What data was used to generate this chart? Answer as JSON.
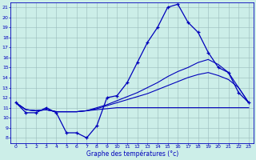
{
  "title": "Graphe des températures (°c)",
  "bg_color": "#cceee8",
  "line_color": "#0000bb",
  "grid_color": "#99bbbb",
  "xlim": [
    -0.5,
    23.5
  ],
  "ylim": [
    7.5,
    21.5
  ],
  "xticks": [
    0,
    1,
    2,
    3,
    4,
    5,
    6,
    7,
    8,
    9,
    10,
    11,
    12,
    13,
    14,
    15,
    16,
    17,
    18,
    19,
    20,
    21,
    22,
    23
  ],
  "yticks": [
    8,
    9,
    10,
    11,
    12,
    13,
    14,
    15,
    16,
    17,
    18,
    19,
    20,
    21
  ],
  "hours": [
    0,
    1,
    2,
    3,
    4,
    5,
    6,
    7,
    8,
    9,
    10,
    11,
    12,
    13,
    14,
    15,
    16,
    17,
    18,
    19,
    20,
    21,
    22,
    23
  ],
  "temp_main": [
    11.5,
    10.5,
    10.5,
    11.0,
    10.5,
    8.5,
    8.5,
    8.0,
    9.2,
    12.0,
    12.2,
    13.5,
    15.5,
    17.5,
    19.0,
    21.0,
    21.3,
    19.5,
    18.5,
    16.5,
    15.0,
    14.5,
    12.5,
    11.5
  ],
  "temp_flat": [
    11.5,
    10.8,
    10.7,
    10.8,
    10.6,
    10.6,
    10.6,
    10.7,
    10.8,
    10.9,
    11.0,
    11.0,
    11.0,
    11.0,
    11.0,
    11.0,
    11.0,
    11.0,
    11.0,
    11.0,
    11.0,
    11.0,
    11.0,
    11.0
  ],
  "temp_mid1": [
    11.5,
    10.8,
    10.7,
    10.8,
    10.6,
    10.6,
    10.6,
    10.7,
    10.9,
    11.2,
    11.5,
    11.8,
    12.1,
    12.4,
    12.8,
    13.2,
    13.6,
    14.0,
    14.3,
    14.5,
    14.2,
    13.8,
    13.0,
    11.5
  ],
  "temp_mid2": [
    11.5,
    10.8,
    10.7,
    10.8,
    10.6,
    10.6,
    10.6,
    10.7,
    11.0,
    11.3,
    11.7,
    12.1,
    12.5,
    13.0,
    13.5,
    14.1,
    14.6,
    15.0,
    15.5,
    15.8,
    15.3,
    14.5,
    13.0,
    11.5
  ]
}
